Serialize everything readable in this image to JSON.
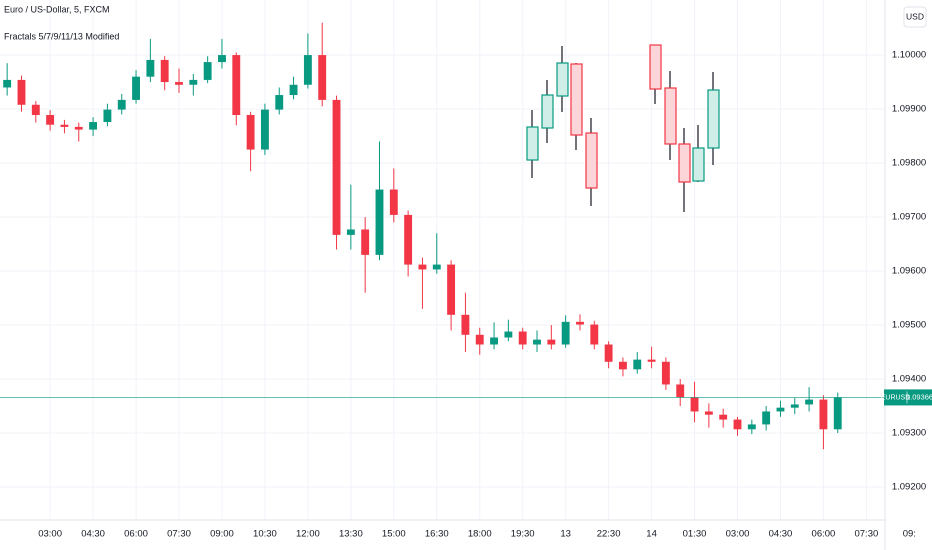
{
  "chart_data": {
    "type": "candlestick",
    "title": "Euro / US-Dollar, 5, FXCM",
    "subtitle": "Fractals 5/7/9/11/13 Modified",
    "currency": "USD",
    "symbol": "EURUSD",
    "last_price": {
      "value": 1.09366,
      "label": "1.09366"
    },
    "up_color": "#089981",
    "down_color": "#f23645",
    "grid": true,
    "open": [
      1.0994,
      1.09954,
      1.09908,
      1.09889,
      1.09871,
      1.09867,
      1.09862,
      1.09876,
      1.09899,
      1.09917,
      1.0996,
      1.09991,
      1.0995,
      1.09945,
      1.09954,
      1.09987,
      1.1,
      1.09889,
      1.09825,
      1.09899,
      1.09926,
      1.09945,
      1.1,
      1.09917,
      1.09667,
      1.09677,
      1.0963,
      1.09751,
      1.09704,
      1.09612,
      1.09603,
      1.09612,
      1.09519,
      1.09482,
      1.09464,
      1.09477,
      1.09488,
      1.09464,
      1.09473,
      1.09464,
      1.09506,
      1.09501,
      1.09464,
      1.09432,
      1.09418,
      1.09436,
      1.09432,
      1.0939,
      1.09366,
      1.0934,
      1.09334,
      1.09325,
      1.09307,
      1.09316,
      1.0934,
      1.09347,
      1.09353,
      1.09362,
      1.09307
    ],
    "high": [
      1.09985,
      1.09962,
      1.09915,
      1.09898,
      1.0988,
      1.09875,
      1.09885,
      1.0991,
      1.09928,
      1.09972,
      1.1003,
      1.09998,
      1.09975,
      1.09965,
      1.09998,
      1.1003,
      1.10005,
      1.09895,
      1.0991,
      1.0994,
      1.0996,
      1.1004,
      1.1006,
      1.09925,
      1.0976,
      1.097,
      1.0984,
      1.0979,
      1.09712,
      1.09625,
      1.0967,
      1.0962,
      1.0956,
      1.09495,
      1.09505,
      1.0951,
      1.09495,
      1.0949,
      1.095,
      1.09518,
      1.0952,
      1.09508,
      1.0947,
      1.0944,
      1.0945,
      1.0946,
      1.0944,
      1.094,
      1.09395,
      1.09355,
      1.09345,
      1.0933,
      1.09325,
      1.0935,
      1.0936,
      1.09365,
      1.09385,
      1.0937,
      1.09375
    ],
    "low": [
      1.09925,
      1.09895,
      1.09875,
      1.0986,
      1.09855,
      1.0984,
      1.0985,
      1.09868,
      1.0989,
      1.0991,
      1.0995,
      1.09935,
      1.0993,
      1.09925,
      1.09948,
      1.09975,
      1.0987,
      1.09785,
      1.09815,
      1.0989,
      1.09918,
      1.09938,
      1.09905,
      1.0964,
      1.0964,
      1.0956,
      1.0962,
      1.0969,
      1.0959,
      1.0953,
      1.09595,
      1.0949,
      1.0945,
      1.09445,
      1.09455,
      1.0947,
      1.09455,
      1.0945,
      1.09455,
      1.09458,
      1.0949,
      1.09455,
      1.0942,
      1.09405,
      1.0941,
      1.0942,
      1.0938,
      1.0935,
      1.0932,
      1.0931,
      1.0931,
      1.09295,
      1.09298,
      1.09305,
      1.0933,
      1.09335,
      1.0934,
      1.0927,
      1.093
    ],
    "close": [
      1.09954,
      1.09908,
      1.09889,
      1.09871,
      1.09867,
      1.09862,
      1.09876,
      1.09899,
      1.09917,
      1.0996,
      1.09991,
      1.0995,
      1.09945,
      1.09954,
      1.09987,
      1.1,
      1.09889,
      1.09825,
      1.09899,
      1.09926,
      1.09945,
      1.1,
      1.09917,
      1.09667,
      1.09677,
      1.0963,
      1.09751,
      1.09704,
      1.09612,
      1.09603,
      1.09612,
      1.09519,
      1.09482,
      1.09464,
      1.09477,
      1.09488,
      1.09464,
      1.09473,
      1.09464,
      1.09506,
      1.09501,
      1.09464,
      1.09432,
      1.09418,
      1.09436,
      1.09432,
      1.0939,
      1.09366,
      1.0934,
      1.09334,
      1.09325,
      1.09307,
      1.09316,
      1.0934,
      1.09347,
      1.09353,
      1.09362,
      1.09307,
      1.09366
    ],
    "xlim": [
      -0.5,
      61.3
    ],
    "xticks": [
      {
        "value": 3,
        "label": "03:00"
      },
      {
        "value": 6,
        "label": "04:30"
      },
      {
        "value": 9,
        "label": "06:00"
      },
      {
        "value": 12,
        "label": "07:30"
      },
      {
        "value": 15,
        "label": "09:00"
      },
      {
        "value": 18,
        "label": "10:30"
      },
      {
        "value": 21,
        "label": "12:00"
      },
      {
        "value": 24,
        "label": "13:30"
      },
      {
        "value": 27,
        "label": "15:00"
      },
      {
        "value": 30,
        "label": "16:30"
      },
      {
        "value": 33,
        "label": "18:00"
      },
      {
        "value": 36,
        "label": "19:30"
      },
      {
        "value": 39,
        "label": "13"
      },
      {
        "value": 42,
        "label": "22:30"
      },
      {
        "value": 45,
        "label": "14"
      },
      {
        "value": 48,
        "label": "01:30"
      },
      {
        "value": 51,
        "label": "03:00"
      },
      {
        "value": 54,
        "label": "04:30"
      },
      {
        "value": 57,
        "label": "06:00"
      },
      {
        "value": 60,
        "label": "07:30"
      },
      {
        "value": 63,
        "label": "09:"
      }
    ],
    "ylim": [
      1.09139,
      1.10102
    ],
    "yticks": [
      {
        "value": 1.092,
        "label": "1.09200"
      },
      {
        "value": 1.093,
        "label": "1.09300"
      },
      {
        "value": 1.094,
        "label": "1.09400"
      },
      {
        "value": 1.095,
        "label": "1.09500"
      },
      {
        "value": 1.096,
        "label": "1.09600"
      },
      {
        "value": 1.097,
        "label": "1.09700"
      },
      {
        "value": 1.098,
        "label": "1.09800"
      },
      {
        "value": 1.099,
        "label": "1.09900"
      },
      {
        "value": 1.1,
        "label": "1.10000"
      }
    ]
  }
}
